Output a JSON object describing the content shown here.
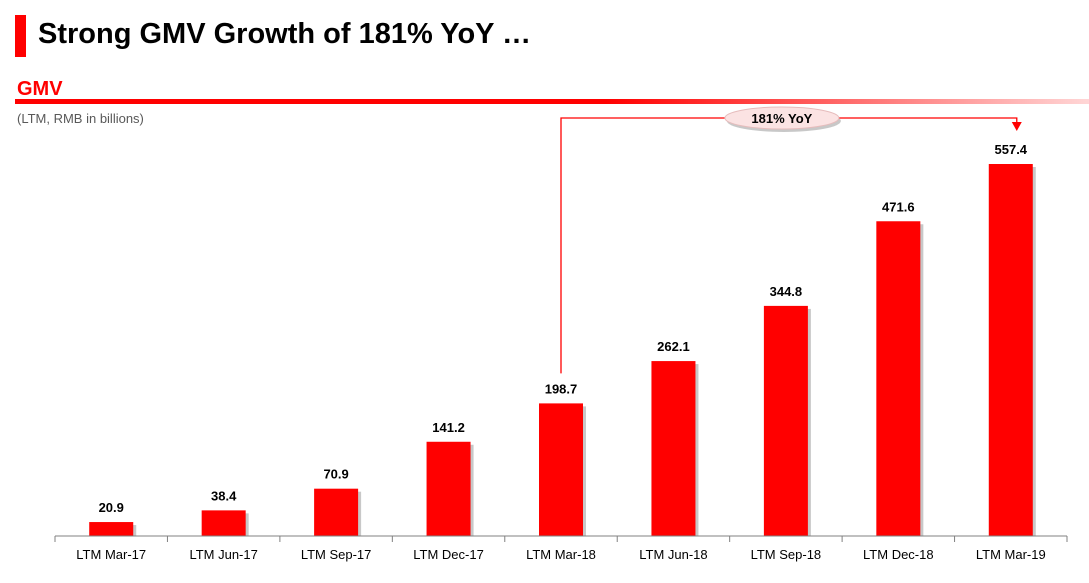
{
  "header": {
    "title": "Strong GMV Growth of 181% YoY …",
    "section": "GMV",
    "subtitle": "(LTM, RMB in billions)"
  },
  "callout": {
    "label": "181% YoY"
  },
  "colors": {
    "accent": "#ff0000",
    "bar_shadow": "#c8c8c8",
    "callout_fill": "#fbe3e3"
  },
  "chart_data": {
    "type": "bar",
    "title": "GMV",
    "subtitle": "(LTM, RMB in billions)",
    "categories": [
      "LTM Mar-17",
      "LTM Jun-17",
      "LTM Sep-17",
      "LTM Dec-17",
      "LTM Mar-18",
      "LTM Jun-18",
      "LTM Sep-18",
      "LTM Dec-18",
      "LTM Mar-19"
    ],
    "values": [
      20.9,
      38.4,
      70.9,
      141.2,
      198.7,
      262.1,
      344.8,
      471.6,
      557.4
    ],
    "data_labels": [
      "20.9",
      "38.4",
      "70.9",
      "141.2",
      "198.7",
      "262.1",
      "344.8",
      "471.6",
      "557.4"
    ],
    "xlabel": "",
    "ylabel": "",
    "ylim": [
      0,
      600
    ],
    "grid": false,
    "legend": "none",
    "annotation": {
      "text": "181% YoY",
      "from": "LTM Mar-18",
      "to": "LTM Mar-19"
    }
  }
}
